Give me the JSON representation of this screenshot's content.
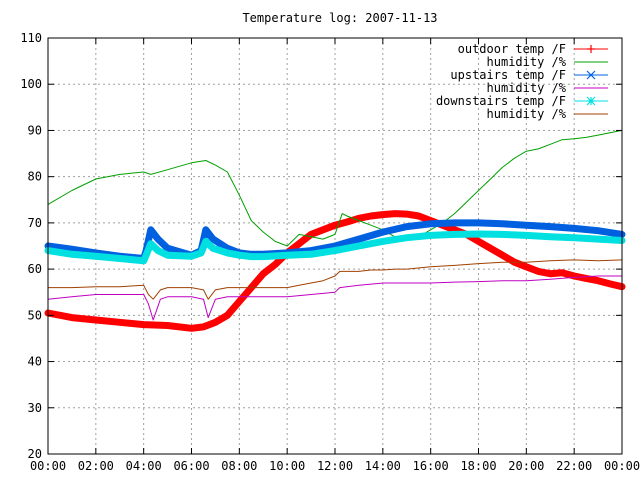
{
  "chart_data": {
    "type": "line",
    "title": "Temperature log: 2007-11-13",
    "xlabel": "",
    "ylabel": "",
    "xlim": [
      0,
      24
    ],
    "ylim": [
      20,
      110
    ],
    "x_ticks": [
      {
        "value": 0,
        "label": "00:00"
      },
      {
        "value": 2,
        "label": "02:00"
      },
      {
        "value": 4,
        "label": "04:00"
      },
      {
        "value": 6,
        "label": "06:00"
      },
      {
        "value": 8,
        "label": "08:00"
      },
      {
        "value": 10,
        "label": "10:00"
      },
      {
        "value": 12,
        "label": "12:00"
      },
      {
        "value": 14,
        "label": "14:00"
      },
      {
        "value": 16,
        "label": "16:00"
      },
      {
        "value": 18,
        "label": "18:00"
      },
      {
        "value": 20,
        "label": "20:00"
      },
      {
        "value": 22,
        "label": "22:00"
      },
      {
        "value": 24,
        "label": "00:00"
      }
    ],
    "y_ticks": [
      20,
      30,
      40,
      50,
      60,
      70,
      80,
      90,
      100,
      110
    ],
    "grid": true,
    "legend_position": "top-right",
    "series": [
      {
        "name": "outdoor temp /F",
        "color": "#ff0000",
        "marker": "plus",
        "x": [
          0,
          1,
          2,
          3,
          4,
          5,
          6,
          6.5,
          7,
          7.5,
          8,
          8.5,
          9,
          9.5,
          10,
          10.5,
          11,
          11.5,
          12,
          12.5,
          13,
          13.5,
          14,
          14.5,
          15,
          15.5,
          16,
          16.5,
          17,
          17.5,
          18,
          18.5,
          19,
          19.5,
          20,
          20.5,
          21,
          21.5,
          22,
          22.5,
          23,
          23.5,
          24
        ],
        "y": [
          50.5,
          49.5,
          49,
          48.5,
          48,
          47.8,
          47.2,
          47.5,
          48.5,
          50,
          53,
          56,
          59,
          61,
          63.5,
          65.5,
          67.5,
          68.5,
          69.5,
          70.2,
          71,
          71.5,
          71.8,
          72,
          71.9,
          71.5,
          70.5,
          69.5,
          68.5,
          67.5,
          66,
          64.5,
          63,
          61.5,
          60.5,
          59.5,
          59,
          59.2,
          58.5,
          58,
          57.5,
          56.8,
          56.2
        ]
      },
      {
        "name": "humidity /%",
        "color": "#00a000",
        "marker": "none",
        "x": [
          0,
          1,
          2,
          3,
          4,
          4.3,
          5,
          6,
          6.6,
          7,
          7.5,
          8,
          8.5,
          9,
          9.5,
          10,
          10.5,
          11,
          11.5,
          12,
          12.3,
          12.5,
          13,
          13.5,
          14,
          14.5,
          15,
          15.5,
          16,
          16.5,
          17,
          17.5,
          18,
          18.5,
          19,
          19.5,
          20,
          20.5,
          21,
          21.5,
          22,
          22.5,
          23,
          23.5,
          24
        ],
        "y": [
          74,
          77,
          79.5,
          80.5,
          81,
          80.5,
          81.5,
          83,
          83.5,
          82.5,
          81,
          76,
          70.5,
          68,
          66,
          65,
          67.5,
          67,
          66.5,
          67.5,
          72,
          71.5,
          70.5,
          69.5,
          68.5,
          67,
          66.5,
          67,
          68.5,
          70,
          72,
          74.5,
          77,
          79.5,
          82,
          84,
          85.5,
          86,
          87,
          88,
          88.2,
          88.5,
          89,
          89.5,
          90
        ]
      },
      {
        "name": "upstairs temp /F",
        "color": "#0060e0",
        "marker": "cross",
        "x": [
          0,
          1,
          2,
          3,
          4,
          4.1,
          4.3,
          4.6,
          5,
          6,
          6.4,
          6.6,
          6.9,
          7.5,
          8,
          8.5,
          9,
          10,
          11,
          12,
          13,
          14,
          15,
          16,
          17,
          18,
          19,
          20,
          21,
          22,
          23,
          24
        ],
        "y": [
          65,
          64.3,
          63.5,
          62.8,
          62.3,
          64,
          68.5,
          66.5,
          64.5,
          63,
          64,
          68.5,
          66.5,
          64.5,
          63.5,
          63.2,
          63.2,
          63.5,
          64,
          65,
          66.5,
          68,
          69.2,
          69.8,
          70,
          70,
          69.8,
          69.5,
          69.2,
          68.8,
          68.3,
          67.5
        ]
      },
      {
        "name": "humidity /%",
        "color": "#c000c0",
        "marker": "none",
        "x": [
          0,
          1,
          2,
          3,
          4,
          4.2,
          4.4,
          4.7,
          5,
          6,
          6.5,
          6.7,
          7,
          7.5,
          8,
          9,
          10,
          11,
          12,
          12.2,
          13,
          14,
          15,
          16,
          17,
          18,
          19,
          20,
          21,
          22,
          23,
          24
        ],
        "y": [
          53.5,
          54,
          54.5,
          54.5,
          54.5,
          52.5,
          49,
          53.5,
          54,
          54,
          53.5,
          49.5,
          53.5,
          54,
          54,
          54,
          54,
          54.5,
          55,
          56,
          56.5,
          57,
          57,
          57,
          57.2,
          57.3,
          57.5,
          57.5,
          57.8,
          58.2,
          58.5,
          58.5
        ]
      },
      {
        "name": "downstairs temp /F",
        "color": "#00e0e0",
        "marker": "star",
        "x": [
          0,
          1,
          2,
          3,
          4,
          4.1,
          4.3,
          4.6,
          5,
          6,
          6.4,
          6.6,
          6.9,
          7.5,
          8,
          8.5,
          9,
          10,
          11,
          12,
          13,
          14,
          15,
          16,
          17,
          18,
          19,
          20,
          21,
          22,
          23,
          24
        ],
        "y": [
          64,
          63.2,
          62.8,
          62.3,
          61.8,
          63,
          65.5,
          64,
          63,
          62.8,
          63.5,
          66,
          64.5,
          63.5,
          63,
          62.7,
          62.7,
          63,
          63.2,
          64,
          65,
          66,
          66.8,
          67.3,
          67.5,
          67.6,
          67.5,
          67.3,
          67,
          66.8,
          66.5,
          66.2
        ]
      },
      {
        "name": "humidity /%",
        "color": "#a04000",
        "marker": "none",
        "x": [
          0,
          1,
          2,
          3,
          4,
          4.2,
          4.4,
          4.7,
          5,
          6,
          6.5,
          6.7,
          7,
          7.5,
          8,
          9,
          10,
          10.5,
          11,
          11.5,
          12,
          12.2,
          12.5,
          13,
          13.5,
          14,
          14.5,
          15,
          16,
          17,
          18,
          19,
          20,
          21,
          22,
          23,
          24
        ],
        "y": [
          56,
          56,
          56.2,
          56.2,
          56.5,
          54.5,
          53.5,
          55.5,
          56,
          56,
          55.5,
          53.5,
          55.5,
          56,
          56,
          56,
          56,
          56.5,
          57,
          57.5,
          58.5,
          59.5,
          59.5,
          59.5,
          59.8,
          59.8,
          60,
          60,
          60.5,
          60.8,
          61.2,
          61.5,
          61.5,
          61.8,
          62,
          61.8,
          62
        ]
      }
    ]
  }
}
